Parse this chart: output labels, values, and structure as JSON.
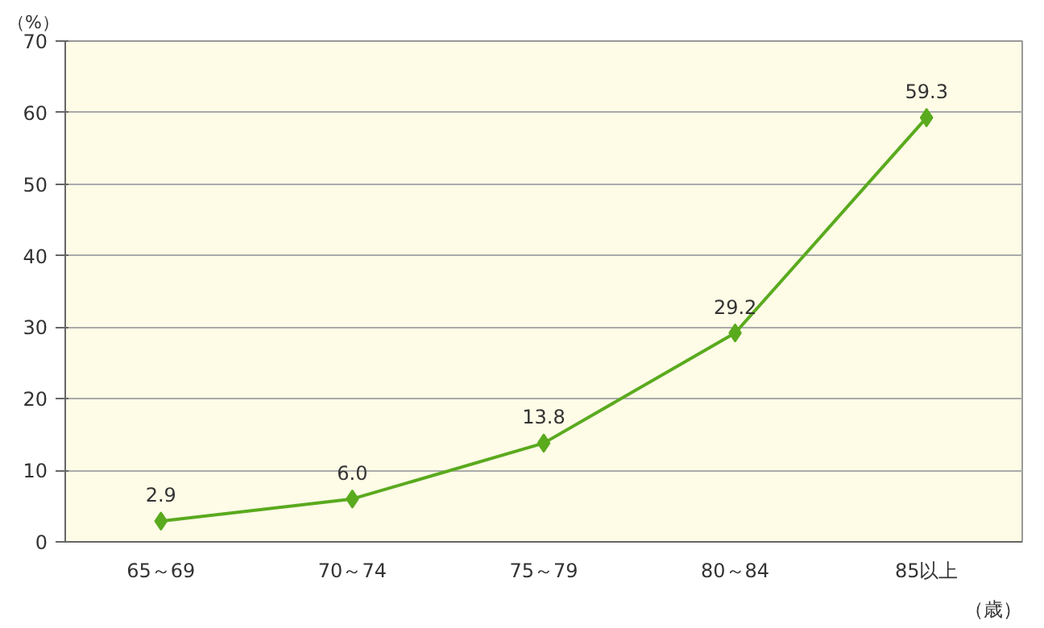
{
  "chart_data": {
    "type": "line",
    "xlabel": "（歳）",
    "ylabel": "（%）",
    "categories": [
      "65～69",
      "70～74",
      "75～79",
      "80～84",
      "85以上"
    ],
    "series": [
      {
        "color": "#5aaa1e",
        "values": [
          2.9,
          6.0,
          13.8,
          29.2,
          59.3
        ],
        "value_labels": [
          "2.9",
          "6.0",
          "13.8",
          "29.2",
          "59.3"
        ]
      }
    ],
    "ylim": [
      0,
      70
    ],
    "yticks": [
      0,
      10,
      20,
      30,
      40,
      50,
      60,
      70
    ],
    "grid": "y",
    "marker": "diamond",
    "line_style": "solid"
  }
}
